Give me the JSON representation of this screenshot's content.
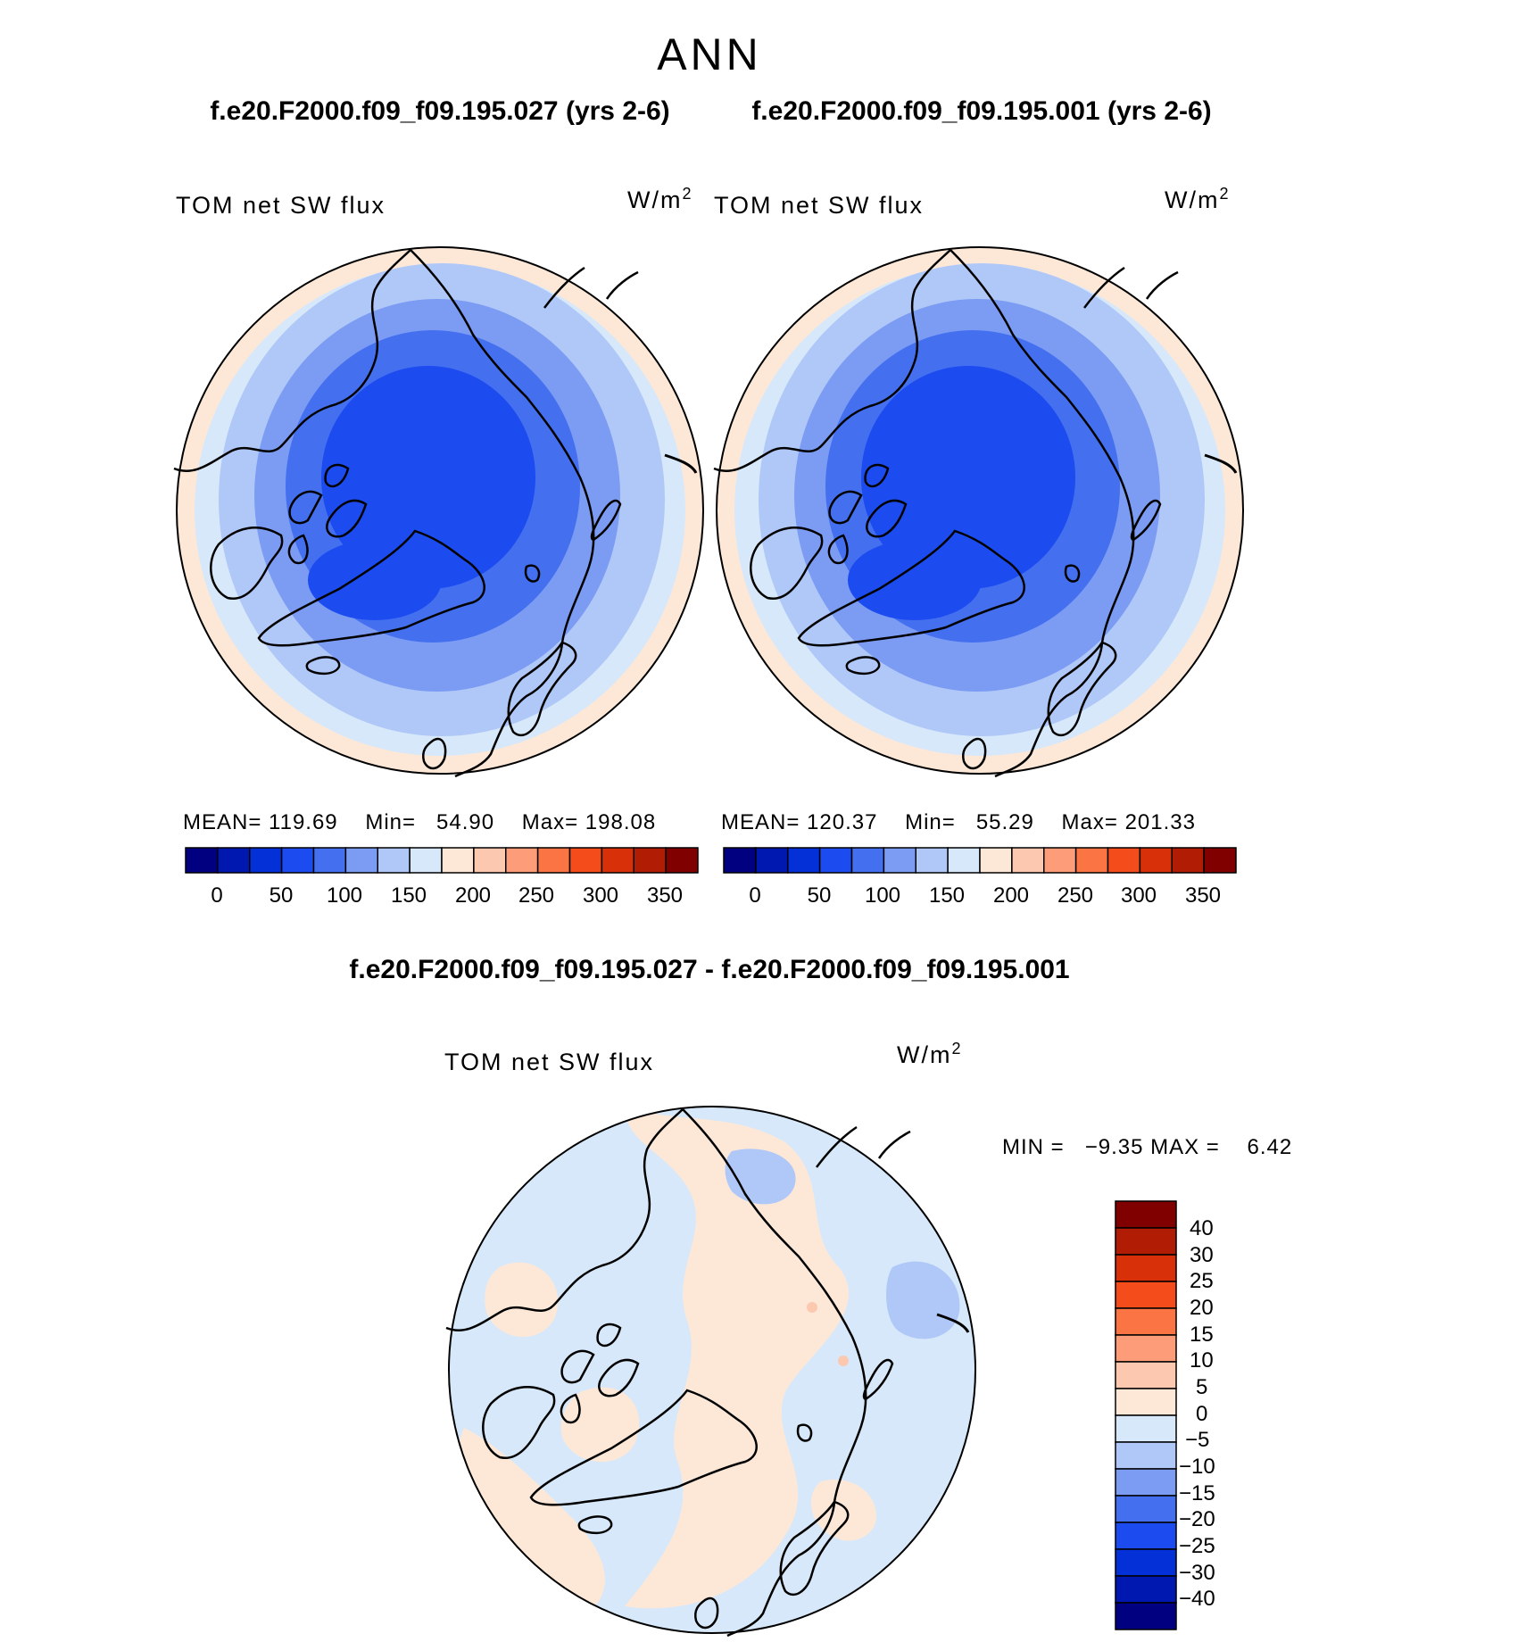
{
  "figure": {
    "season": "ANN"
  },
  "panels": [
    {
      "case_title": "f.e20.F2000.f09_f09.195.027 (yrs 2-6)",
      "variable": "TOM net SW flux",
      "units": "W/m",
      "units_exp": "2",
      "stats": {
        "mean_label": "MEAN=",
        "mean": "119.69",
        "min_label": "Min=",
        "min": "54.90",
        "max_label": "Max=",
        "max": "198.08"
      }
    },
    {
      "case_title": "f.e20.F2000.f09_f09.195.001 (yrs 2-6)",
      "variable": "TOM net SW flux",
      "units": "W/m",
      "units_exp": "2",
      "stats": {
        "mean_label": "MEAN=",
        "mean": "120.37",
        "min_label": "Min=",
        "min": "55.29",
        "max_label": "Max=",
        "max": "201.33"
      }
    }
  ],
  "difference": {
    "title": "f.e20.F2000.f09_f09.195.027 - f.e20.F2000.f09_f09.195.001",
    "variable": "TOM net SW flux",
    "units": "W/m",
    "units_exp": "2",
    "min_label": "MIN =",
    "min": "−9.35",
    "max_label": "MAX =",
    "max": "6.42"
  },
  "colorbar_abs": {
    "colors": [
      "#000080",
      "#0018b0",
      "#0430d8",
      "#1c4cf0",
      "#4470f0",
      "#7c9cf4",
      "#b0c8f8",
      "#d6e8fa",
      "#fde8d8",
      "#fcc8b0",
      "#fc9c78",
      "#fb7444",
      "#f54c1c",
      "#d83008",
      "#b01c04",
      "#800000"
    ],
    "tick_labels": [
      "0",
      "50",
      "100",
      "150",
      "200",
      "250",
      "300",
      "350"
    ]
  },
  "colorbar_diff": {
    "colors": [
      "#800000",
      "#b01c04",
      "#d83008",
      "#f54c1c",
      "#fb7444",
      "#fc9c78",
      "#fcc8b0",
      "#fde8d8",
      "#d6e8fa",
      "#b0c8f8",
      "#7c9cf4",
      "#4470f0",
      "#1c4cf0",
      "#0430d8",
      "#0018b0",
      "#000080"
    ],
    "tick_labels": [
      "40",
      "30",
      "25",
      "20",
      "15",
      "10",
      "5",
      "0",
      "−5",
      "−10",
      "−15",
      "−20",
      "−25",
      "−30",
      "−40"
    ]
  }
}
